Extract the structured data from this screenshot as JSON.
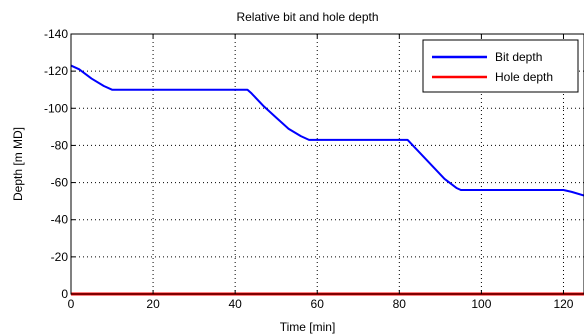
{
  "chart_data": {
    "type": "line",
    "title": "Relative bit and hole depth",
    "xlabel": "Time [min]",
    "ylabel": "Depth [m MD]",
    "xlim": [
      0,
      125
    ],
    "ylim": [
      0,
      -140
    ],
    "y_reversed": true,
    "grid": true,
    "legend_position": "top-right",
    "x_ticks": [
      0,
      20,
      40,
      60,
      80,
      100,
      120
    ],
    "y_ticks": [
      0,
      -20,
      -40,
      -60,
      -80,
      -100,
      -120,
      -140
    ],
    "series": [
      {
        "name": "Bit depth",
        "color": "#0000ff",
        "x": [
          0,
          2,
          5,
          8,
          10,
          20,
          30,
          40,
          43,
          44,
          47,
          50,
          53,
          56,
          58,
          60,
          70,
          80,
          82,
          85,
          88,
          91,
          94,
          95,
          100,
          110,
          120,
          122,
          125
        ],
        "y": [
          -123,
          -121,
          -116,
          -112,
          -110,
          -110,
          -110,
          -110,
          -110,
          -108,
          -101,
          -95,
          -89,
          -85,
          -83,
          -83,
          -83,
          -83,
          -83,
          -76,
          -69,
          -62,
          -57,
          -56,
          -56,
          -56,
          -56,
          -55,
          -53
        ]
      },
      {
        "name": "Hole depth",
        "color": "#ff0000",
        "x": [
          0,
          125
        ],
        "y": [
          0,
          0
        ]
      }
    ]
  }
}
